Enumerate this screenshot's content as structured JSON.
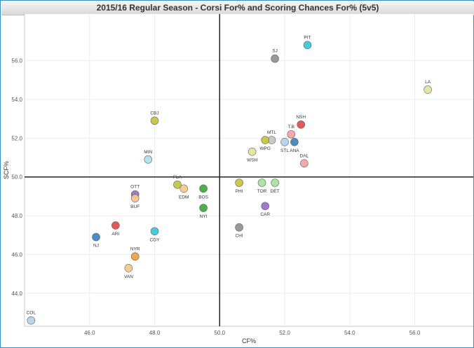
{
  "chart_data": {
    "type": "scatter",
    "title": "2015/16 Regular Season - Corsi For% and Scoring Chances For% (5v5)",
    "xlabel": "CF%",
    "ylabel": "SCF%",
    "xlim": [
      44.0,
      57.8
    ],
    "ylim": [
      42.3,
      58.4
    ],
    "xticks": [
      "46.0",
      "48.0",
      "50.0",
      "52.0",
      "54.0",
      "56.0"
    ],
    "xtick_values": [
      46,
      48,
      50,
      52,
      54,
      56
    ],
    "yticks": [
      "44.0",
      "46.0",
      "48.0",
      "50.0",
      "52.0",
      "54.0",
      "56.0"
    ],
    "ytick_values": [
      44,
      46,
      48,
      50,
      52,
      54,
      56
    ],
    "crosshair": {
      "x": 50.0,
      "y": 50.0
    },
    "points": [
      {
        "team": "PIT",
        "x": 52.7,
        "y": 56.8,
        "color": "#3cc7d6",
        "label_pos": "above"
      },
      {
        "team": "SJ",
        "x": 51.7,
        "y": 56.1,
        "color": "#909090",
        "label_pos": "above"
      },
      {
        "team": "LA",
        "x": 56.4,
        "y": 54.5,
        "color": "#e4e39a",
        "label_pos": "above"
      },
      {
        "team": "CBJ",
        "x": 48.0,
        "y": 52.9,
        "color": "#c2c43a",
        "label_pos": "above"
      },
      {
        "team": "NSH",
        "x": 52.5,
        "y": 52.7,
        "color": "#e34a4a",
        "label_pos": "above"
      },
      {
        "team": "T.B",
        "x": 52.2,
        "y": 52.2,
        "color": "#f4a3a3",
        "label_pos": "above"
      },
      {
        "team": "MTL",
        "x": 51.6,
        "y": 51.9,
        "color": "#c4c4c4",
        "label_pos": "above"
      },
      {
        "team": "WPG",
        "x": 51.4,
        "y": 51.9,
        "color": "#c2c43a",
        "label_pos": "below"
      },
      {
        "team": "STL",
        "x": 52.0,
        "y": 51.8,
        "color": "#b3d2ee",
        "label_pos": "below"
      },
      {
        "team": "ANA",
        "x": 52.3,
        "y": 51.8,
        "color": "#3d82bd",
        "label_pos": "below"
      },
      {
        "team": "WSH",
        "x": 51.0,
        "y": 51.3,
        "color": "#e4e39a",
        "label_pos": "below"
      },
      {
        "team": "MIN",
        "x": 47.8,
        "y": 50.9,
        "color": "#aee0ee",
        "label_pos": "above"
      },
      {
        "team": "DAL",
        "x": 52.6,
        "y": 50.7,
        "color": "#f4a3a3",
        "label_pos": "above"
      },
      {
        "team": "PHI",
        "x": 50.6,
        "y": 49.7,
        "color": "#c2c43a",
        "label_pos": "below"
      },
      {
        "team": "TOR",
        "x": 51.3,
        "y": 49.7,
        "color": "#a8e0a0",
        "label_pos": "below"
      },
      {
        "team": "DET",
        "x": 51.7,
        "y": 49.7,
        "color": "#a8e0a0",
        "label_pos": "below"
      },
      {
        "team": "FLA",
        "x": 48.7,
        "y": 49.6,
        "color": "#c2c43a",
        "label_pos": "above"
      },
      {
        "team": "EDM",
        "x": 48.9,
        "y": 49.4,
        "color": "#f6c88a",
        "label_pos": "below"
      },
      {
        "team": "BOS",
        "x": 49.5,
        "y": 49.4,
        "color": "#3aaa3a",
        "label_pos": "below"
      },
      {
        "team": "OTT",
        "x": 47.4,
        "y": 49.1,
        "color": "#9a6fc9",
        "label_pos": "above"
      },
      {
        "team": "BUF",
        "x": 47.4,
        "y": 48.9,
        "color": "#f6c88a",
        "label_pos": "below"
      },
      {
        "team": "CAR",
        "x": 51.4,
        "y": 48.5,
        "color": "#9a6fc9",
        "label_pos": "below"
      },
      {
        "team": "NYI",
        "x": 49.5,
        "y": 48.4,
        "color": "#3aaa3a",
        "label_pos": "below"
      },
      {
        "team": "ARI",
        "x": 46.8,
        "y": 47.5,
        "color": "#e34a4a",
        "label_pos": "below"
      },
      {
        "team": "CHI",
        "x": 50.6,
        "y": 47.4,
        "color": "#909090",
        "label_pos": "below"
      },
      {
        "team": "CGY",
        "x": 48.0,
        "y": 47.2,
        "color": "#3cc7d6",
        "label_pos": "below"
      },
      {
        "team": "NJ",
        "x": 46.2,
        "y": 46.9,
        "color": "#3d82bd",
        "label_pos": "below"
      },
      {
        "team": "NYR",
        "x": 47.4,
        "y": 45.9,
        "color": "#f2a03a",
        "label_pos": "above"
      },
      {
        "team": "VAN",
        "x": 47.2,
        "y": 45.3,
        "color": "#f6c88a",
        "label_pos": "below"
      },
      {
        "team": "COL",
        "x": 44.2,
        "y": 42.6,
        "color": "#b3d2ee",
        "label_pos": "above"
      }
    ]
  }
}
